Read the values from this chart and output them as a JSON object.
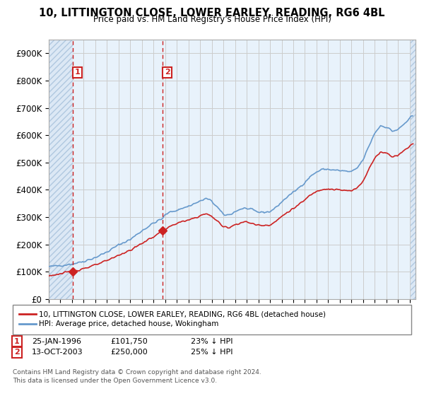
{
  "title": "10, LITTINGTON CLOSE, LOWER EARLEY, READING, RG6 4BL",
  "subtitle": "Price paid vs. HM Land Registry's House Price Index (HPI)",
  "footer": "Contains HM Land Registry data © Crown copyright and database right 2024.\nThis data is licensed under the Open Government Licence v3.0.",
  "legend_line1": "10, LITTINGTON CLOSE, LOWER EARLEY, READING, RG6 4BL (detached house)",
  "legend_line2": "HPI: Average price, detached house, Wokingham",
  "sale1_date": "25-JAN-1996",
  "sale1_price": "£101,750",
  "sale1_hpi": "23% ↓ HPI",
  "sale2_date": "13-OCT-2003",
  "sale2_price": "£250,000",
  "sale2_hpi": "25% ↓ HPI",
  "sale1_year": 1996.07,
  "sale2_year": 2003.79,
  "sale1_value": 101750,
  "sale2_value": 250000,
  "hpi_color": "#6699cc",
  "price_color": "#cc2222",
  "ylim_min": 0,
  "ylim_max": 950000,
  "xlim_min": 1994.0,
  "xlim_max": 2025.5,
  "ytick_vals": [
    0,
    100000,
    200000,
    300000,
    400000,
    500000,
    600000,
    700000,
    800000,
    900000
  ],
  "ytick_labels": [
    "£0",
    "£100K",
    "£200K",
    "£300K",
    "£400K",
    "£500K",
    "£600K",
    "£700K",
    "£800K",
    "£900K"
  ],
  "xtick_vals": [
    1994,
    1995,
    1996,
    1997,
    1998,
    1999,
    2000,
    2001,
    2002,
    2003,
    2004,
    2005,
    2006,
    2007,
    2008,
    2009,
    2010,
    2011,
    2012,
    2013,
    2014,
    2015,
    2016,
    2017,
    2018,
    2019,
    2020,
    2021,
    2022,
    2023,
    2024,
    2025
  ]
}
